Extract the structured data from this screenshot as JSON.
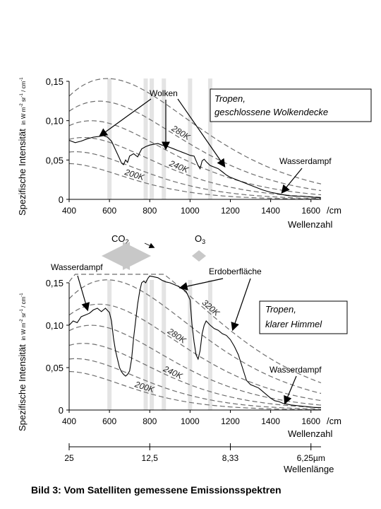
{
  "caption": "Bild 3: Vom Satelliten gemessene Emissionsspektren",
  "chart_data": [
    {
      "type": "line",
      "box_title": "Tropen,",
      "box_subtitle": "geschlossene Wolkendecke",
      "ylabel_main": "Spezifische Intensität",
      "ylabel_unit": "in W m",
      "ylabel_sup1": "-2",
      "ylabel_mid": " sr",
      "ylabel_sup2": "-1",
      "ylabel_mid2": " / cm",
      "ylabel_sup3": "-1",
      "x_unit": "/cm",
      "xlabel": "Wellenzahl",
      "xlim": [
        400,
        1650
      ],
      "ylim": [
        0,
        0.15
      ],
      "x_ticks": [
        {
          "v": 400,
          "label": "400"
        },
        {
          "v": 600,
          "label": "600"
        },
        {
          "v": 800,
          "label": "800"
        },
        {
          "v": 1000,
          "label": "1000"
        },
        {
          "v": 1200,
          "label": "1200"
        },
        {
          "v": 1400,
          "label": "1400"
        },
        {
          "v": 1600,
          "label": "1600"
        }
      ],
      "y_ticks": [
        {
          "v": 0,
          "label": "0"
        },
        {
          "v": 0.05,
          "label": "0,05"
        },
        {
          "v": 0.1,
          "label": "0,10"
        },
        {
          "v": 0.15,
          "label": "0,15"
        }
      ],
      "planck_curves": [
        {
          "T": 200,
          "label": "200K",
          "label_at": 670
        },
        {
          "T": 220,
          "label": ""
        },
        {
          "T": 240,
          "label": "240K",
          "label_at": 890
        },
        {
          "T": 260,
          "label": ""
        },
        {
          "T": 280,
          "label": "280K",
          "label_at": 900
        },
        {
          "T": 300,
          "label": ""
        }
      ],
      "series": [
        {
          "x": [
            400,
            430,
            460,
            490,
            520,
            550,
            570,
            590,
            610,
            630,
            650,
            660,
            670,
            680,
            690,
            700,
            720,
            740,
            760,
            780,
            800,
            820,
            840,
            860,
            880,
            900,
            920,
            940,
            960,
            980,
            1000,
            1020,
            1040,
            1050,
            1060,
            1070,
            1080,
            1100,
            1120,
            1140,
            1160,
            1180,
            1200,
            1240,
            1280,
            1320,
            1360,
            1400,
            1440,
            1480,
            1520,
            1560,
            1600,
            1650
          ],
          "y": [
            0.075,
            0.072,
            0.074,
            0.077,
            0.079,
            0.08,
            0.081,
            0.079,
            0.074,
            0.063,
            0.052,
            0.046,
            0.044,
            0.05,
            0.047,
            0.055,
            0.058,
            0.054,
            0.064,
            0.067,
            0.069,
            0.07,
            0.071,
            0.069,
            0.068,
            0.066,
            0.064,
            0.062,
            0.06,
            0.058,
            0.056,
            0.055,
            0.043,
            0.039,
            0.049,
            0.051,
            0.048,
            0.043,
            0.041,
            0.039,
            0.035,
            0.031,
            0.028,
            0.024,
            0.02,
            0.016,
            0.012,
            0.009,
            0.007,
            0.005,
            0.004,
            0.004,
            0.003,
            0.002
          ]
        }
      ],
      "annotations": {
        "wolken": "Wolken",
        "wasserdampf": "Wasserdampf"
      },
      "bands": [
        600,
        780,
        810,
        870,
        1000,
        1100
      ]
    },
    {
      "type": "line",
      "box_title": "Tropen,",
      "box_subtitle": "klarer Himmel",
      "ylabel_main": "Spezifische Intensität",
      "ylabel_unit": "in W m",
      "ylabel_sup1": "-2",
      "ylabel_mid": " sr",
      "ylabel_sup2": "-1",
      "ylabel_mid2": " / cm",
      "ylabel_sup3": "-1",
      "x_unit": "/cm",
      "xlabel": "Wellenzahl",
      "xlim": [
        400,
        1650
      ],
      "ylim": [
        0,
        0.15
      ],
      "x_ticks": [
        {
          "v": 400,
          "label": "400"
        },
        {
          "v": 600,
          "label": "600"
        },
        {
          "v": 800,
          "label": "800"
        },
        {
          "v": 1000,
          "label": "1000"
        },
        {
          "v": 1200,
          "label": "1200"
        },
        {
          "v": 1400,
          "label": "1400"
        },
        {
          "v": 1600,
          "label": "1600"
        }
      ],
      "y_ticks": [
        {
          "v": 0,
          "label": "0"
        },
        {
          "v": 0.05,
          "label": "0,05"
        },
        {
          "v": 0.1,
          "label": "0,10"
        },
        {
          "v": 0.15,
          "label": "0,15"
        }
      ],
      "planck_curves": [
        {
          "T": 200,
          "label": "200K",
          "label_at": 720
        },
        {
          "T": 220,
          "label": ""
        },
        {
          "T": 240,
          "label": "240K",
          "label_at": 860
        },
        {
          "T": 260,
          "label": ""
        },
        {
          "T": 280,
          "label": "280K",
          "label_at": 880
        },
        {
          "T": 300,
          "label": ""
        },
        {
          "T": 320,
          "label": "320K",
          "label_at": 1050
        }
      ],
      "series": [
        {
          "x": [
            400,
            420,
            440,
            460,
            480,
            500,
            520,
            540,
            560,
            580,
            600,
            610,
            620,
            630,
            640,
            650,
            660,
            670,
            680,
            690,
            700,
            710,
            720,
            730,
            740,
            750,
            760,
            770,
            780,
            790,
            800,
            820,
            840,
            860,
            880,
            900,
            920,
            940,
            960,
            980,
            1000,
            1010,
            1020,
            1030,
            1040,
            1050,
            1060,
            1070,
            1080,
            1100,
            1120,
            1140,
            1160,
            1180,
            1200,
            1220,
            1240,
            1260,
            1280,
            1300,
            1320,
            1340,
            1360,
            1380,
            1400,
            1420,
            1440,
            1460,
            1480,
            1500,
            1540,
            1580,
            1620,
            1650
          ],
          "y": [
            0.1,
            0.105,
            0.103,
            0.11,
            0.112,
            0.114,
            0.118,
            0.12,
            0.116,
            0.12,
            0.115,
            0.105,
            0.085,
            0.07,
            0.06,
            0.05,
            0.045,
            0.042,
            0.04,
            0.042,
            0.046,
            0.06,
            0.085,
            0.105,
            0.125,
            0.14,
            0.15,
            0.152,
            0.15,
            0.155,
            0.158,
            0.157,
            0.156,
            0.153,
            0.151,
            0.15,
            0.148,
            0.146,
            0.143,
            0.14,
            0.13,
            0.1,
            0.08,
            0.065,
            0.06,
            0.07,
            0.09,
            0.1,
            0.105,
            0.1,
            0.096,
            0.094,
            0.09,
            0.088,
            0.083,
            0.075,
            0.065,
            0.05,
            0.035,
            0.03,
            0.028,
            0.026,
            0.022,
            0.018,
            0.014,
            0.011,
            0.01,
            0.008,
            0.007,
            0.006,
            0.005,
            0.004,
            0.003,
            0.003
          ]
        }
      ],
      "annotations": {
        "wasserdampf_left": "Wasserdampf",
        "erdoberflaeche": "Erdoberfläche",
        "wasserdampf_right": "Wasserdampf",
        "co2_prefix": "CO",
        "co2_sub": "2",
        "o3_prefix": "O",
        "o3_sub": "3"
      },
      "bands": [
        600,
        780,
        810,
        870,
        1000,
        1100
      ]
    }
  ],
  "wavelength_axis": {
    "ticks": [
      {
        "wn": 400,
        "label": "25"
      },
      {
        "wn": 800,
        "label": "12,5"
      },
      {
        "wn": 1200,
        "label": "8,33"
      },
      {
        "wn": 1600,
        "label": "6,25µm"
      }
    ],
    "xlabel": "Wellenlänge"
  }
}
